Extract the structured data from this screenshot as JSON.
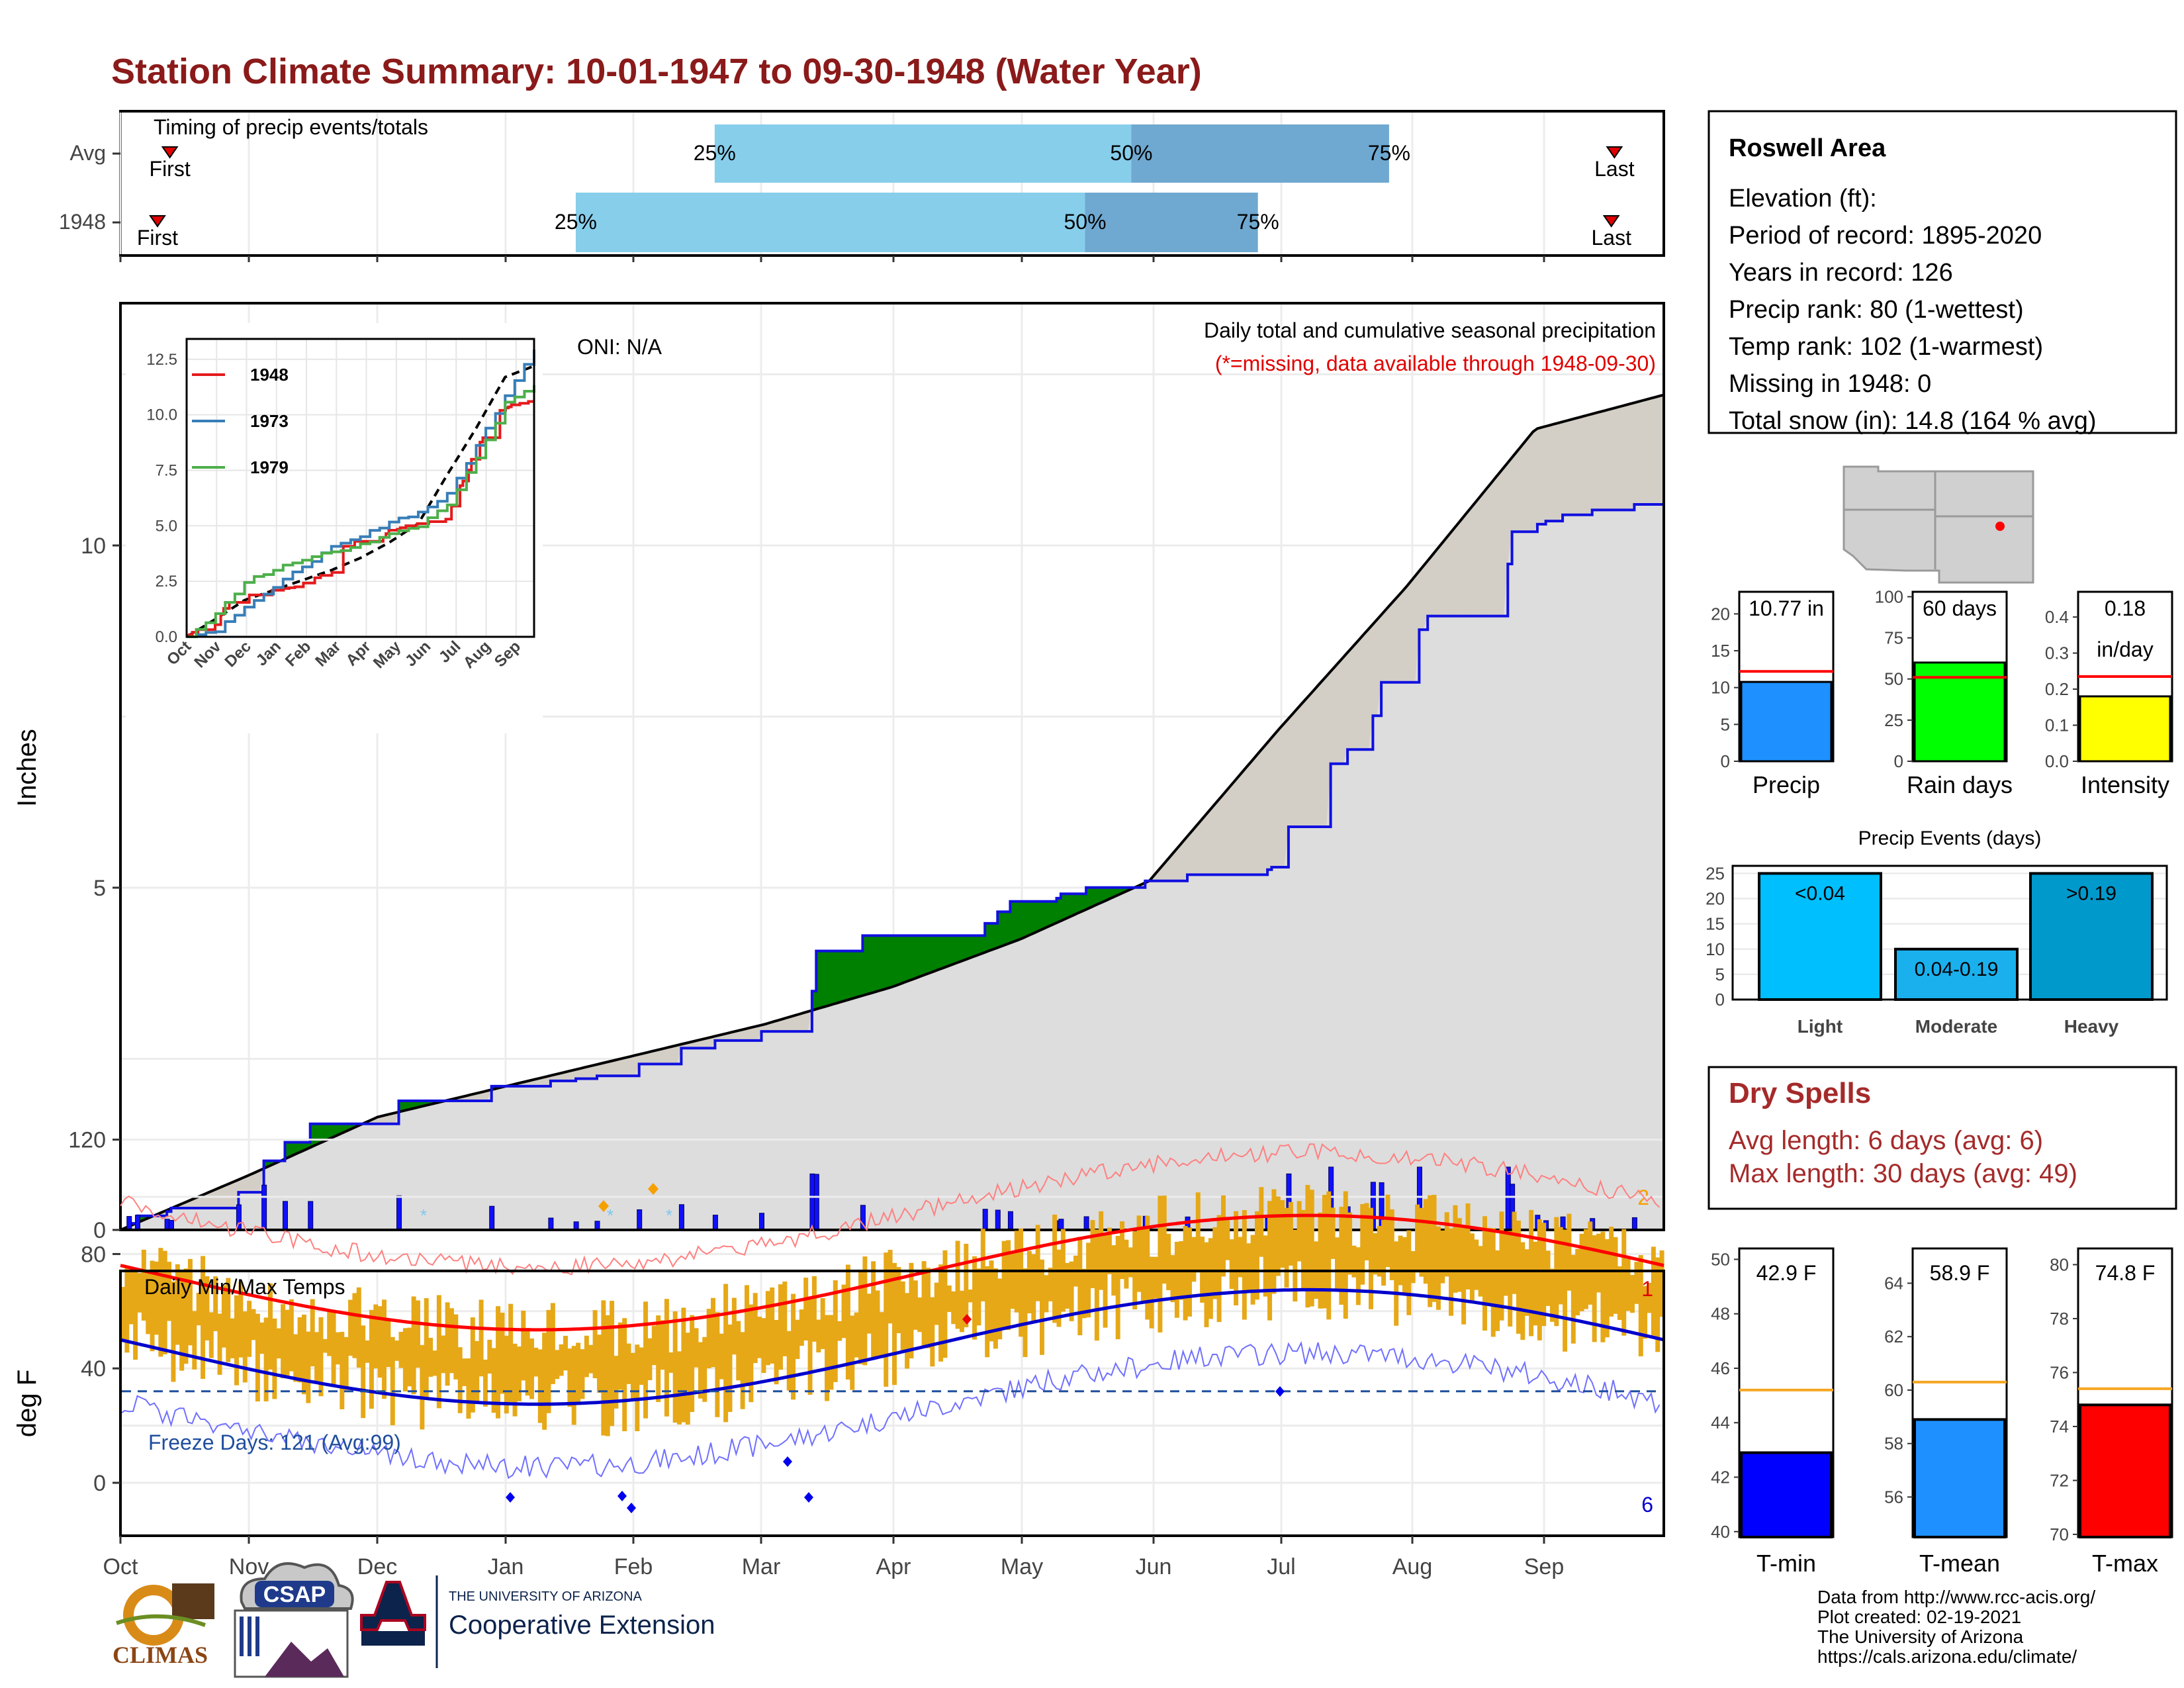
{
  "title": "Station Climate Summary: 10-01-1947 to 09-30-1948 (Water Year)",
  "timing": {
    "label": "Timing of precip events/totals",
    "rows": [
      {
        "name": "Avg",
        "first_label": "First",
        "last_label": "Last",
        "p25": "25%",
        "p50": "50%",
        "p75": "75%",
        "first_frac": 0.032,
        "last_frac": 0.968,
        "q25": 0.385,
        "q50": 0.655,
        "q75": 0.822
      },
      {
        "name": "1948",
        "first_label": "First",
        "last_label": "Last",
        "p25": "25%",
        "p50": "50%",
        "p75": "75%",
        "first_frac": 0.024,
        "last_frac": 0.966,
        "q25": 0.295,
        "q50": 0.625,
        "q75": 0.737
      }
    ]
  },
  "main": {
    "ylabel": "Inches",
    "yticks": [
      "0",
      "5",
      "10"
    ],
    "oni": "ONI: N/A",
    "heading": "Daily total and cumulative seasonal precipitation",
    "note": "(*=missing, data available through 1948-09-30)",
    "corner_label": "2",
    "months": [
      "Oct",
      "Nov",
      "Dec",
      "Jan",
      "Feb",
      "Mar",
      "Apr",
      "May",
      "Jun",
      "Jul",
      "Aug",
      "Sep"
    ]
  },
  "inset": {
    "yticks": [
      "0.0",
      "2.5",
      "5.0",
      "7.5",
      "10.0",
      "12.5"
    ],
    "months": [
      "Oct",
      "Nov",
      "Dec",
      "Jan",
      "Feb",
      "Mar",
      "Apr",
      "May",
      "Jun",
      "Jul",
      "Aug",
      "Sep"
    ],
    "legend": [
      {
        "name": "1948",
        "color": "#e41a1c"
      },
      {
        "name": "1973",
        "color": "#377eb8"
      },
      {
        "name": "1979",
        "color": "#4daf4a"
      }
    ]
  },
  "temps": {
    "ylabel": "deg F",
    "label": "Daily Min/Max Temps",
    "yticks": [
      "0",
      "40",
      "80",
      "120"
    ],
    "freeze": "Freeze Days: 121 (Avg:99)",
    "top_count": "1",
    "bottom_count": "6"
  },
  "station": {
    "name": "Roswell Area",
    "lines": [
      "Elevation (ft):",
      "Period of record: 1895-2020",
      "Years in record: 126",
      "Precip rank: 80 (1-wettest)",
      "Temp rank: 102 (1-warmest)",
      "Missing in 1948: 0",
      "Total snow (in): 14.8 (164 % avg)"
    ]
  },
  "mini": [
    {
      "label": "Precip",
      "value_text": "10.77 in",
      "value": 10.77,
      "avg": 12.2,
      "ymax": 23,
      "ticks": [
        "0",
        "5",
        "10",
        "15",
        "20"
      ],
      "tickvals": [
        0,
        5,
        10,
        15,
        20
      ],
      "color": "#1e90ff"
    },
    {
      "label": "Rain days",
      "value_text": "60 days",
      "value": 60,
      "avg": 51,
      "ymax": 103,
      "ticks": [
        "0",
        "25",
        "50",
        "75",
        "100"
      ],
      "tickvals": [
        0,
        25,
        50,
        75,
        100
      ],
      "color": "#00ff00"
    },
    {
      "label": "Intensity",
      "value_text": "0.18",
      "value_text2": "in/day",
      "value": 0.18,
      "avg": 0.235,
      "ymax": 0.47,
      "ticks": [
        "0.0",
        "0.1",
        "0.2",
        "0.3",
        "0.4"
      ],
      "tickvals": [
        0,
        0.1,
        0.2,
        0.3,
        0.4
      ],
      "color": "#ffff00"
    }
  ],
  "events": {
    "title": "Precip Events (days)",
    "ticks": [
      "0",
      "5",
      "10",
      "15",
      "20",
      "25"
    ],
    "bars": [
      {
        "label": "Light",
        "text": "<0.04",
        "value": 25,
        "color": "#00bfff"
      },
      {
        "label": "Moderate",
        "text": "0.04-0.19",
        "value": 10,
        "color": "#1ab0ee"
      },
      {
        "label": "Heavy",
        "text": ">0.19",
        "value": 25,
        "color": "#0099cc"
      }
    ]
  },
  "dry": {
    "title": "Dry Spells",
    "avg": "Avg length: 6 days (avg: 6)",
    "max": "Max length: 30 days (avg: 49)"
  },
  "tbars": [
    {
      "label": "T-min",
      "value_text": "42.9 F",
      "value": 42.9,
      "avg": 45.2,
      "ymin": 39.8,
      "ymax": 50.4,
      "ticks": [
        "40",
        "42",
        "44",
        "46",
        "48",
        "50"
      ],
      "tickvals": [
        40,
        42,
        44,
        46,
        48,
        50
      ],
      "color": "#0000ff"
    },
    {
      "label": "T-mean",
      "value_text": "58.9 F",
      "value": 58.9,
      "avg": 60.3,
      "ymin": 54.5,
      "ymax": 65.3,
      "ticks": [
        "56",
        "58",
        "60",
        "62",
        "64"
      ],
      "tickvals": [
        56,
        58,
        60,
        62,
        64
      ],
      "color": "#1e90ff"
    },
    {
      "label": "T-max",
      "value_text": "74.8 F",
      "value": 74.8,
      "avg": 75.4,
      "ymin": 69.9,
      "ymax": 80.6,
      "ticks": [
        "70",
        "72",
        "74",
        "76",
        "78",
        "80"
      ],
      "tickvals": [
        70,
        72,
        74,
        76,
        78,
        80
      ],
      "color": "#ff0000"
    }
  ],
  "credits": [
    "Data from http://www.rcc-acis.org/",
    "Plot created: 02-19-2021",
    "The University of Arizona",
    "https://cals.arizona.edu/climate/"
  ],
  "logos": {
    "climas": "CLIMAS",
    "csap": "CSAP",
    "ua_small": "THE UNIVERSITY OF ARIZONA",
    "ua_big": "Cooperative Extension"
  },
  "chart_data": {
    "type": "area",
    "title": "Daily total and cumulative seasonal precipitation",
    "ylabel": "Inches",
    "ylim": [
      0,
      13.5
    ],
    "x": [
      "Oct",
      "Nov",
      "Dec",
      "Jan",
      "Feb",
      "Mar",
      "Apr",
      "May",
      "Jun",
      "Jul",
      "Aug",
      "Sep"
    ],
    "series": [
      {
        "name": "1948",
        "values": [
          0.55,
          1.55,
          2.1,
          2.25,
          2.9,
          4.3,
          4.8,
          5.1,
          5.3,
          8.0,
          10.2,
          10.6
        ]
      }
    ],
    "avg_cumulative": [
      0.0,
      0.8,
      1.65,
      2.1,
      2.55,
      3.0,
      3.55,
      4.25,
      5.1,
      7.3,
      9.4,
      11.7,
      12.2
    ]
  }
}
